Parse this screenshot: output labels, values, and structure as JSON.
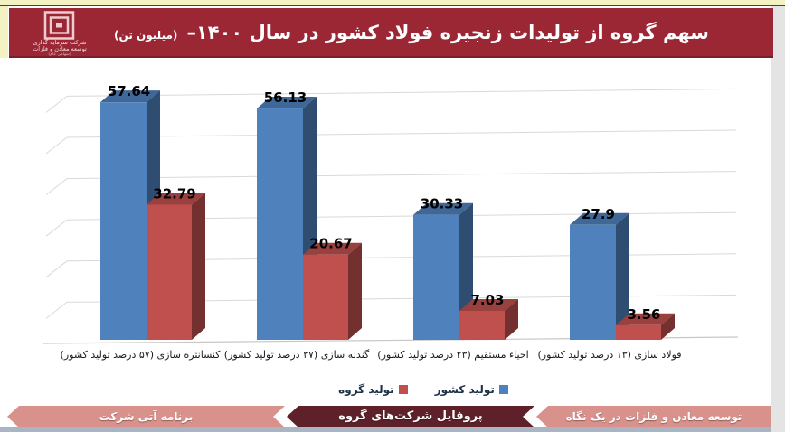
{
  "header": {
    "title": "سهم گروه از تولیدات زنجیره فولاد کشور در سال ۱۴۰۰–",
    "title_unit": "(میلیون تن)",
    "logo": {
      "icon": "nested-squares-logo",
      "line1": "شرکت سرمایه گذاری",
      "line2": "توسعه معادن و فلزات",
      "line3": "(سهامی عام)"
    }
  },
  "chart_data": {
    "type": "bar",
    "style": "3d-clustered-column",
    "title": "سهم گروه از تولیدات زنجیره فولاد کشور در سال ۱۴۰۰ (میلیون تن)",
    "categories": [
      "کنسانتره سازی (۵۷ درصد تولید کشور)",
      "گندله سازی (۳۷ درصد تولید کشور)",
      "احیاء مستقیم (۲۳ درصد تولید کشور)",
      "فولاد سازی (۱۳ درصد تولید کشور)"
    ],
    "series": [
      {
        "name": "تولید کشور",
        "color": "#4F81BD",
        "values": [
          57.64,
          56.13,
          30.33,
          27.9
        ]
      },
      {
        "name": "تولید گروه",
        "color": "#C0504D",
        "values": [
          32.79,
          20.67,
          7.03,
          3.56
        ]
      }
    ],
    "ylim": [
      0,
      60
    ],
    "gridline_step": 10,
    "grid": true,
    "data_labels": true,
    "legend_position": "bottom",
    "value_axis_labels": false
  },
  "footer": {
    "tabs": [
      {
        "label": "توسعه معادن و فلزات در یک نگاه",
        "active": false
      },
      {
        "label": "پروفایل شرکت‌های گروه",
        "active": true
      },
      {
        "label": "برنامه آتی شرکت",
        "active": false
      }
    ]
  },
  "colors": {
    "header_background": "#9B2735",
    "top_strip": "#F4F1C2",
    "right_strip": "#E4E4E4",
    "bottom_strip": "#A9B5C4",
    "footer_tab_inactive": "#D8918B",
    "footer_tab_active": "#5E2129",
    "series_country": "#4F81BD",
    "series_group": "#C0504D",
    "gridline": "#D9D9D9"
  }
}
